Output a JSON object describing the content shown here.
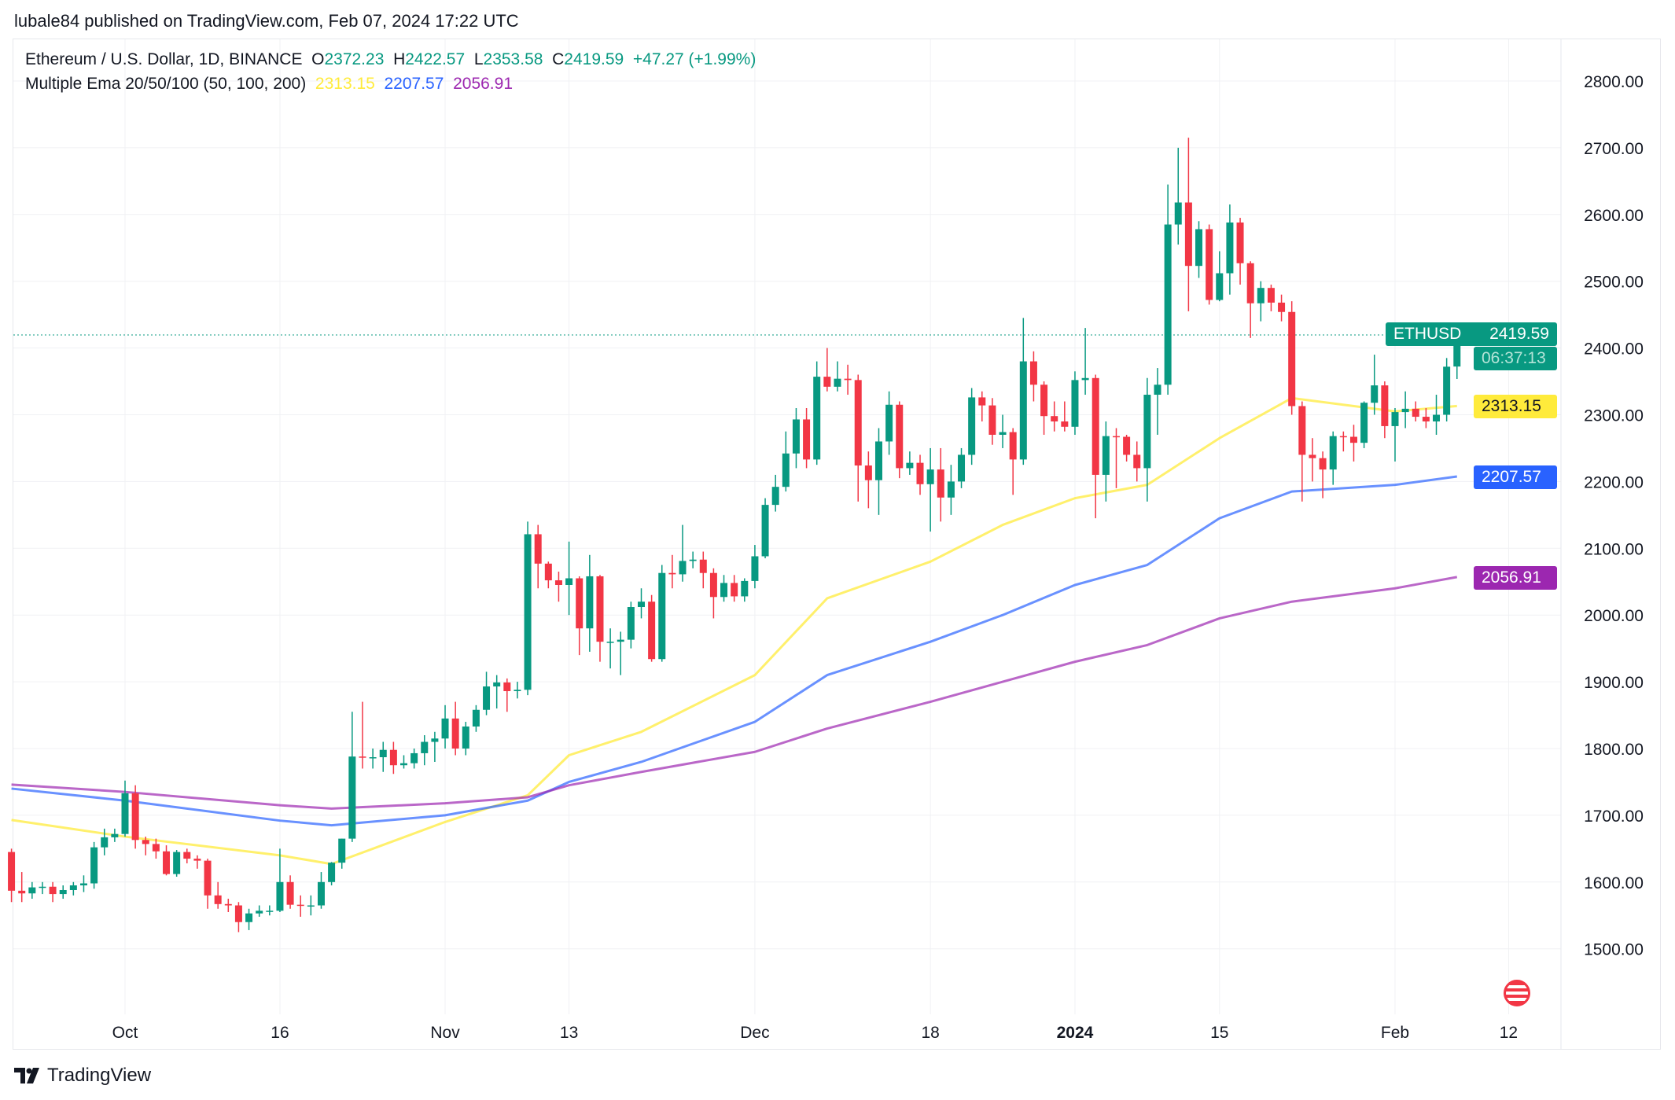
{
  "publisher_line": "lubale84 published on TradingView.com, Feb 07, 2024 17:22 UTC",
  "legend": {
    "symbol": "Ethereum / U.S. Dollar, 1D, BINANCE",
    "o_label": "O",
    "o": "2372.23",
    "h_label": "H",
    "h": "2422.57",
    "l_label": "L",
    "l": "2353.58",
    "c_label": "C",
    "c": "2419.59",
    "change": "+47.27 (+1.99%)",
    "indicator": "Multiple Ema 20/50/100 (50, 100, 200)",
    "ema1": "2313.15",
    "ema2": "2207.57",
    "ema3": "2056.91"
  },
  "price_tag": {
    "symbol": "ETHUSD",
    "price": "2419.59",
    "countdown": "06:37:13"
  },
  "brand": "TradingView",
  "colors": {
    "up": "#089981",
    "down": "#f23645",
    "ema1": "#ffeb3b",
    "ema2": "#2962ff",
    "ema3": "#9c27b0"
  },
  "chart_data": {
    "type": "candlestick",
    "ylim": [
      1440,
      2870
    ],
    "y_ticks": [
      "2800.00",
      "2700.00",
      "2600.00",
      "2500.00",
      "2400.00",
      "2300.00",
      "2200.00",
      "2100.00",
      "2000.00",
      "1900.00",
      "1800.00",
      "1700.00",
      "1600.00",
      "1500.00"
    ],
    "x_ticks": [
      {
        "date": "2023-10-01",
        "label": "Oct"
      },
      {
        "date": "2023-10-16",
        "label": "16"
      },
      {
        "date": "2023-11-01",
        "label": "Nov"
      },
      {
        "date": "2023-11-13",
        "label": "13"
      },
      {
        "date": "2023-12-01",
        "label": "Dec"
      },
      {
        "date": "2023-12-18",
        "label": "18"
      },
      {
        "date": "2024-01-01",
        "label": "2024",
        "bold": true
      },
      {
        "date": "2024-01-15",
        "label": "15"
      },
      {
        "date": "2024-02-01",
        "label": "Feb"
      },
      {
        "date": "2024-02-12",
        "label": "12"
      }
    ],
    "start_date": "2023-09-20",
    "ohlc": [
      [
        1645,
        1650,
        1570,
        1587
      ],
      [
        1587,
        1615,
        1570,
        1583
      ],
      [
        1583,
        1600,
        1575,
        1592
      ],
      [
        1592,
        1600,
        1582,
        1593
      ],
      [
        1593,
        1600,
        1570,
        1582
      ],
      [
        1582,
        1595,
        1575,
        1588
      ],
      [
        1588,
        1600,
        1580,
        1595
      ],
      [
        1595,
        1610,
        1585,
        1598
      ],
      [
        1598,
        1660,
        1590,
        1652
      ],
      [
        1652,
        1680,
        1640,
        1667
      ],
      [
        1667,
        1680,
        1660,
        1672
      ],
      [
        1672,
        1752,
        1668,
        1733
      ],
      [
        1733,
        1745,
        1650,
        1663
      ],
      [
        1663,
        1668,
        1640,
        1657
      ],
      [
        1657,
        1665,
        1635,
        1646
      ],
      [
        1646,
        1655,
        1610,
        1612
      ],
      [
        1612,
        1648,
        1608,
        1645
      ],
      [
        1645,
        1650,
        1628,
        1635
      ],
      [
        1635,
        1640,
        1620,
        1632
      ],
      [
        1632,
        1635,
        1560,
        1580
      ],
      [
        1580,
        1600,
        1560,
        1567
      ],
      [
        1567,
        1575,
        1555,
        1565
      ],
      [
        1565,
        1570,
        1525,
        1540
      ],
      [
        1540,
        1560,
        1528,
        1553
      ],
      [
        1553,
        1565,
        1548,
        1557
      ],
      [
        1557,
        1565,
        1550,
        1557
      ],
      [
        1557,
        1650,
        1555,
        1600
      ],
      [
        1600,
        1610,
        1560,
        1566
      ],
      [
        1566,
        1580,
        1548,
        1565
      ],
      [
        1565,
        1580,
        1550,
        1565
      ],
      [
        1565,
        1615,
        1560,
        1600
      ],
      [
        1600,
        1630,
        1595,
        1629
      ],
      [
        1629,
        1665,
        1620,
        1665
      ],
      [
        1665,
        1855,
        1660,
        1788
      ],
      [
        1788,
        1870,
        1770,
        1787
      ],
      [
        1787,
        1800,
        1770,
        1787
      ],
      [
        1787,
        1810,
        1765,
        1798
      ],
      [
        1798,
        1810,
        1762,
        1775
      ],
      [
        1775,
        1790,
        1770,
        1778
      ],
      [
        1778,
        1800,
        1770,
        1793
      ],
      [
        1793,
        1820,
        1775,
        1810
      ],
      [
        1810,
        1825,
        1780,
        1815
      ],
      [
        1815,
        1865,
        1800,
        1845
      ],
      [
        1845,
        1870,
        1790,
        1800
      ],
      [
        1800,
        1840,
        1790,
        1833
      ],
      [
        1833,
        1865,
        1825,
        1858
      ],
      [
        1858,
        1915,
        1850,
        1893
      ],
      [
        1893,
        1910,
        1860,
        1899
      ],
      [
        1899,
        1905,
        1855,
        1886
      ],
      [
        1886,
        1900,
        1875,
        1888
      ],
      [
        1888,
        2140,
        1880,
        2121
      ],
      [
        2121,
        2135,
        2040,
        2077
      ],
      [
        2077,
        2080,
        2040,
        2052
      ],
      [
        2052,
        2065,
        2020,
        2045
      ],
      [
        2045,
        2110,
        2000,
        2055
      ],
      [
        2055,
        2058,
        1940,
        1980
      ],
      [
        1980,
        2090,
        1945,
        2058
      ],
      [
        2058,
        2060,
        1930,
        1960
      ],
      [
        1960,
        1980,
        1920,
        1960
      ],
      [
        1960,
        1975,
        1910,
        1963
      ],
      [
        1963,
        2020,
        1950,
        2012
      ],
      [
        2012,
        2040,
        1995,
        2020
      ],
      [
        2020,
        2030,
        1930,
        1934
      ],
      [
        1934,
        2075,
        1930,
        2063
      ],
      [
        2063,
        2090,
        2040,
        2061
      ],
      [
        2061,
        2135,
        2050,
        2081
      ],
      [
        2081,
        2095,
        2070,
        2083
      ],
      [
        2083,
        2095,
        2040,
        2063
      ],
      [
        2063,
        2070,
        1995,
        2027
      ],
      [
        2027,
        2060,
        2020,
        2048
      ],
      [
        2048,
        2060,
        2020,
        2028
      ],
      [
        2028,
        2055,
        2020,
        2051
      ],
      [
        2051,
        2105,
        2040,
        2088
      ],
      [
        2088,
        2175,
        2085,
        2165
      ],
      [
        2165,
        2210,
        2155,
        2192
      ],
      [
        2192,
        2275,
        2185,
        2242
      ],
      [
        2242,
        2310,
        2220,
        2293
      ],
      [
        2293,
        2310,
        2220,
        2233
      ],
      [
        2233,
        2380,
        2225,
        2357
      ],
      [
        2357,
        2400,
        2335,
        2342
      ],
      [
        2342,
        2380,
        2335,
        2354
      ],
      [
        2354,
        2375,
        2330,
        2352
      ],
      [
        2352,
        2360,
        2170,
        2224
      ],
      [
        2224,
        2245,
        2160,
        2202
      ],
      [
        2202,
        2280,
        2150,
        2260
      ],
      [
        2260,
        2335,
        2240,
        2315
      ],
      [
        2315,
        2320,
        2205,
        2220
      ],
      [
        2220,
        2245,
        2210,
        2228
      ],
      [
        2228,
        2240,
        2180,
        2196
      ],
      [
        2196,
        2250,
        2125,
        2218
      ],
      [
        2218,
        2250,
        2140,
        2176
      ],
      [
        2176,
        2225,
        2150,
        2200
      ],
      [
        2200,
        2250,
        2190,
        2240
      ],
      [
        2240,
        2340,
        2225,
        2326
      ],
      [
        2326,
        2335,
        2290,
        2314
      ],
      [
        2314,
        2325,
        2255,
        2270
      ],
      [
        2270,
        2300,
        2250,
        2274
      ],
      [
        2274,
        2280,
        2180,
        2233
      ],
      [
        2233,
        2445,
        2225,
        2380
      ],
      [
        2380,
        2395,
        2320,
        2345
      ],
      [
        2345,
        2350,
        2270,
        2298
      ],
      [
        2298,
        2320,
        2275,
        2290
      ],
      [
        2290,
        2320,
        2275,
        2282
      ],
      [
        2282,
        2365,
        2270,
        2352
      ],
      [
        2352,
        2430,
        2330,
        2355
      ],
      [
        2355,
        2360,
        2145,
        2210
      ],
      [
        2210,
        2290,
        2170,
        2268
      ],
      [
        2268,
        2280,
        2190,
        2267
      ],
      [
        2267,
        2270,
        2230,
        2240
      ],
      [
        2240,
        2260,
        2200,
        2220
      ],
      [
        2220,
        2355,
        2170,
        2330
      ],
      [
        2330,
        2370,
        2270,
        2345
      ],
      [
        2345,
        2645,
        2330,
        2585
      ],
      [
        2585,
        2700,
        2555,
        2618
      ],
      [
        2618,
        2715,
        2455,
        2523
      ],
      [
        2523,
        2590,
        2505,
        2578
      ],
      [
        2578,
        2585,
        2465,
        2472
      ],
      [
        2472,
        2545,
        2470,
        2512
      ],
      [
        2512,
        2615,
        2480,
        2588
      ],
      [
        2588,
        2595,
        2495,
        2527
      ],
      [
        2527,
        2530,
        2415,
        2467
      ],
      [
        2467,
        2500,
        2440,
        2490
      ],
      [
        2490,
        2495,
        2455,
        2468
      ],
      [
        2468,
        2480,
        2440,
        2454
      ],
      [
        2454,
        2470,
        2300,
        2313
      ],
      [
        2313,
        2320,
        2170,
        2240
      ],
      [
        2240,
        2265,
        2200,
        2235
      ],
      [
        2235,
        2245,
        2175,
        2218
      ],
      [
        2218,
        2275,
        2195,
        2268
      ],
      [
        2268,
        2275,
        2245,
        2267
      ],
      [
        2267,
        2285,
        2230,
        2258
      ],
      [
        2258,
        2320,
        2250,
        2318
      ],
      [
        2318,
        2390,
        2300,
        2344
      ],
      [
        2344,
        2350,
        2265,
        2283
      ],
      [
        2283,
        2310,
        2230,
        2304
      ],
      [
        2304,
        2335,
        2280,
        2309
      ],
      [
        2309,
        2320,
        2290,
        2297
      ],
      [
        2297,
        2310,
        2280,
        2290
      ],
      [
        2290,
        2330,
        2270,
        2300
      ],
      [
        2300,
        2385,
        2290,
        2372
      ],
      [
        2372.23,
        2422.57,
        2353.58,
        2419.59
      ]
    ],
    "ema_dates": [
      "2023-09-20",
      "2023-10-01",
      "2023-10-16",
      "2023-10-21",
      "2023-11-01",
      "2023-11-09",
      "2023-11-13",
      "2023-11-20",
      "2023-12-01",
      "2023-12-08",
      "2023-12-18",
      "2023-12-25",
      "2024-01-01",
      "2024-01-08",
      "2024-01-15",
      "2024-01-22",
      "2024-02-01",
      "2024-02-07"
    ],
    "series": [
      {
        "name": "EMA 50",
        "values": [
          1693,
          1668,
          1640,
          1627,
          1690,
          1730,
          1790,
          1825,
          1910,
          2025,
          2080,
          2135,
          2175,
          2195,
          2265,
          2325,
          2305,
          2313.15
        ]
      },
      {
        "name": "EMA 100",
        "values": [
          1740,
          1722,
          1692,
          1685,
          1700,
          1722,
          1750,
          1780,
          1840,
          1910,
          1960,
          2000,
          2045,
          2075,
          2145,
          2185,
          2195,
          2207.57
        ]
      },
      {
        "name": "EMA 200",
        "values": [
          1746,
          1735,
          1715,
          1710,
          1718,
          1727,
          1745,
          1765,
          1795,
          1830,
          1870,
          1900,
          1930,
          1955,
          1995,
          2020,
          2040,
          2056.91
        ]
      }
    ]
  }
}
